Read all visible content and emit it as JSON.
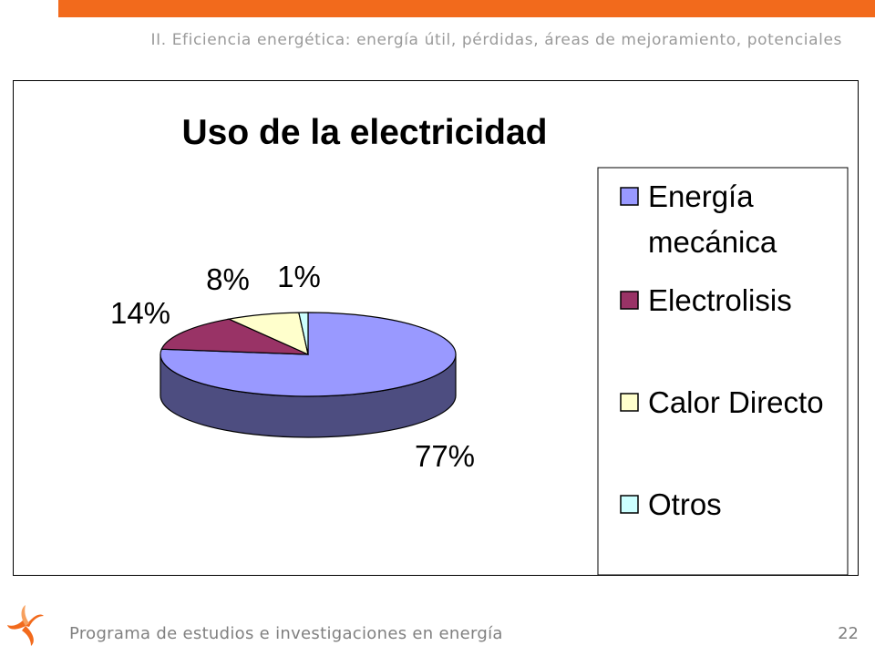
{
  "slide": {
    "section_title": "II. Eficiencia energética: energía útil, pérdidas, áreas de mejoramiento, potenciales",
    "footer_text": "Programa de estudios e investigaciones en energía",
    "page_number": "22",
    "accent_color": "#f26a1c"
  },
  "icons": {
    "logo": "swirl-logo-icon"
  },
  "chart_data": {
    "type": "pie",
    "style": "3d",
    "title": "Uso de la electricidad",
    "categories": [
      "Energía mecánica",
      "Electrolisis",
      "Calor Directo",
      "Otros"
    ],
    "values": [
      77,
      14,
      8,
      1
    ],
    "labels": [
      "77%",
      "14%",
      "8%",
      "1%"
    ],
    "colors": [
      "#9999ff",
      "#993366",
      "#ffffcc",
      "#ccffff"
    ],
    "side_colors": [
      "#4d4d80",
      "#4d1a33",
      "#808066",
      "#668080"
    ],
    "legend_position": "right",
    "legend": [
      {
        "name": "Energía",
        "name2": "mecánica"
      },
      {
        "name": "Electrolisis"
      },
      {
        "name": "Calor Directo"
      },
      {
        "name": "Otros"
      }
    ]
  }
}
